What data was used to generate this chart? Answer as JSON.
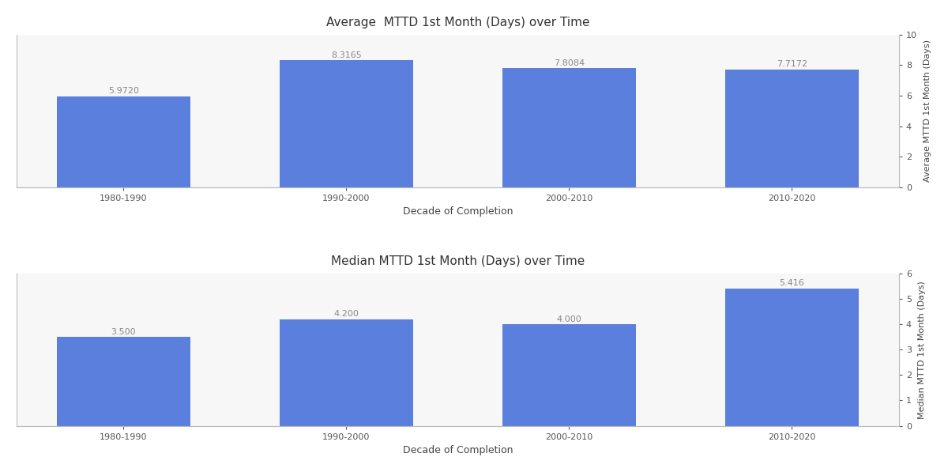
{
  "categories": [
    "1980-1990",
    "1990-2000",
    "2000-2010",
    "2010-2020"
  ],
  "avg_values": [
    5.972,
    8.3165,
    7.8084,
    7.7172
  ],
  "med_values": [
    3.5,
    4.2,
    4.0,
    5.416
  ],
  "avg_title": "Average  MTTD 1st Month (Days) over Time",
  "med_title": "Median MTTD 1st Month (Days) over Time",
  "xlabel": "Decade of Completion",
  "avg_ylabel": "Average MTTD 1st Month (Days)",
  "med_ylabel": "Median MTTD 1st Month (Days)",
  "avg_ylim": [
    0,
    10
  ],
  "med_ylim": [
    0,
    6
  ],
  "bar_color": "#5b7fdd",
  "bar_width": 0.6,
  "fig_bg_color": "#ffffff",
  "plot_bg_color": "#f7f7f7",
  "grid_color": "#cccccc",
  "label_color": "#888888",
  "spine_color": "#bbbbbb",
  "tick_color": "#888888",
  "avg_yticks": [
    0,
    2,
    4,
    6,
    8,
    10
  ],
  "med_yticks": [
    0,
    1,
    2,
    3,
    4,
    5,
    6
  ],
  "title_fontsize": 11,
  "label_fontsize": 9,
  "tick_fontsize": 8,
  "annot_fontsize": 8
}
